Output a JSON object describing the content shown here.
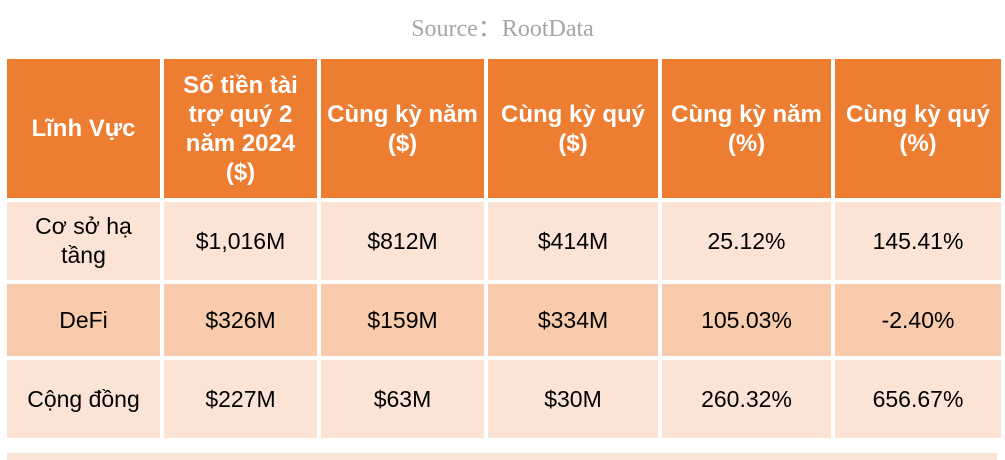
{
  "source": "Source：RootData",
  "chart_data": {
    "type": "table",
    "columns": [
      "Lĩnh Vực",
      "Số tiền tài trợ quý 2 năm 2024 ($)",
      "Cùng kỳ năm ($)",
      "Cùng kỳ quý ($)",
      "Cùng kỳ năm (%)",
      "Cùng kỳ quý (%)"
    ],
    "rows": [
      [
        "Cơ sở hạ tầng",
        "$1,016M",
        "$812M",
        "$414M",
        "25.12%",
        "145.41%"
      ],
      [
        "DeFi",
        "$326M",
        "$159M",
        "$334M",
        "105.03%",
        "-2.40%"
      ],
      [
        "Cộng đồng",
        "$227M",
        "$63M",
        "$30M",
        "260.32%",
        "656.67%"
      ]
    ]
  },
  "colors": {
    "header_bg": "#ed7d31",
    "header_text": "#ffffff",
    "row_light": "#fbe4d5",
    "row_dark": "#f8cbad",
    "source_text": "#a6a6a6"
  }
}
